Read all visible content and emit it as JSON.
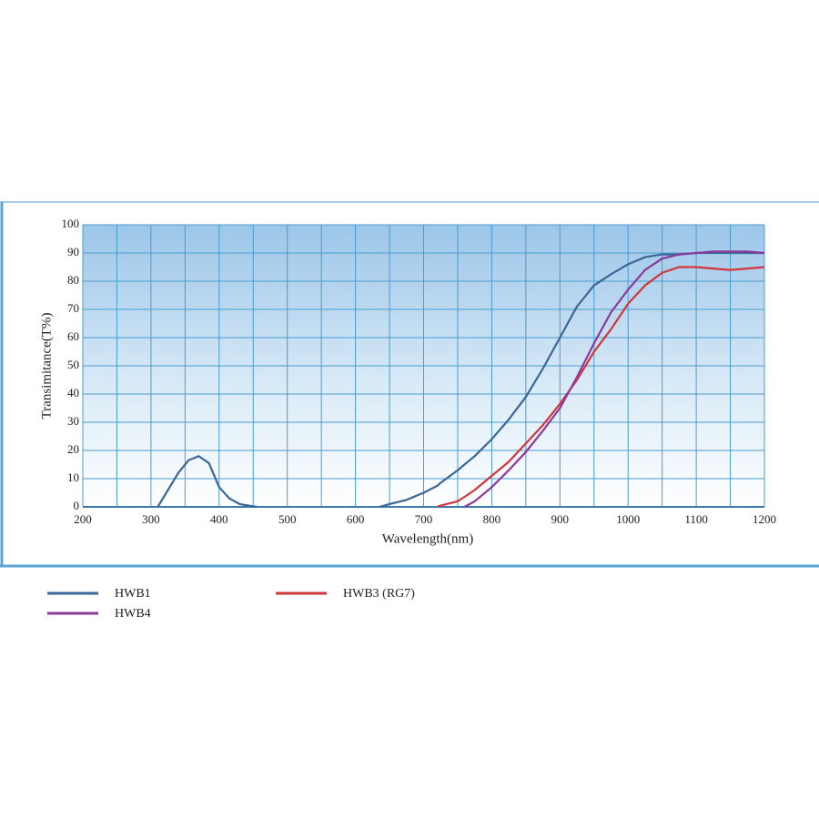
{
  "chart_data": {
    "type": "line",
    "ylabel": "Transimitance(T%)",
    "xlabel": "Wavelength(nm)",
    "xlim": [
      200,
      1200
    ],
    "ylim": [
      0,
      100
    ],
    "xticks": [
      200,
      300,
      400,
      500,
      600,
      700,
      800,
      900,
      1000,
      1100,
      1200
    ],
    "xgrid": [
      250,
      350,
      450,
      550,
      650,
      750,
      850,
      950,
      1050,
      1150
    ],
    "yticks": [
      0,
      10,
      20,
      30,
      40,
      50,
      60,
      70,
      80,
      90,
      100
    ],
    "grid": true,
    "x": [
      310,
      325,
      340,
      355,
      370,
      385,
      400,
      415,
      430,
      455,
      545,
      635,
      650,
      675,
      700,
      720,
      725,
      750,
      760,
      775,
      800,
      825,
      850,
      875,
      900,
      925,
      950,
      975,
      1000,
      1025,
      1050,
      1075,
      1100,
      1125,
      1150,
      1175,
      1200
    ],
    "series": [
      {
        "name": "HWB1",
        "color": "#3a6796",
        "values": [
          0,
          6,
          12,
          16.5,
          18,
          15.5,
          7,
          3,
          1,
          0,
          null,
          0,
          1,
          2.5,
          5,
          7.5,
          8.5,
          13,
          15,
          18,
          24,
          31,
          39,
          49,
          60,
          71,
          78.5,
          82.5,
          86,
          88.5,
          89.5,
          89.5,
          90,
          90,
          90,
          90,
          90
        ]
      },
      {
        "name": "HWB3 (RG7)",
        "color": "#d2363c",
        "values": [
          null,
          null,
          null,
          null,
          null,
          null,
          null,
          null,
          null,
          null,
          null,
          null,
          null,
          null,
          null,
          0,
          0.5,
          2,
          3.5,
          6,
          11,
          16,
          22.5,
          29,
          36.5,
          45,
          55,
          63,
          72,
          78.5,
          83,
          85,
          85,
          84.5,
          84,
          84.5,
          85
        ]
      },
      {
        "name": "HWB4",
        "color": "#8b3a9c",
        "values": [
          null,
          null,
          null,
          null,
          null,
          null,
          null,
          null,
          null,
          null,
          null,
          null,
          null,
          null,
          null,
          null,
          null,
          null,
          0,
          2,
          7,
          13,
          19.5,
          27,
          35,
          46,
          58,
          69,
          77,
          84,
          88,
          89.5,
          90,
          90.5,
          90.5,
          90.5,
          90
        ]
      }
    ]
  }
}
